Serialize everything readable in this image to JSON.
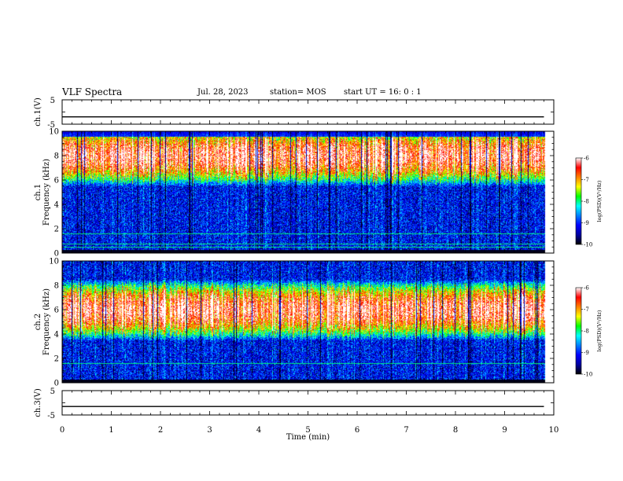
{
  "header": {
    "title": "VLF Spectra",
    "date": "Jul. 28, 2023",
    "station": "station= MOS",
    "start": "start  UT =   16: 0  : 1"
  },
  "chart_data": [
    {
      "type": "line",
      "panel": "ch1-voltage",
      "ylabel": "ch.1(V)",
      "ylim": [
        -5,
        5
      ],
      "y_ticks": [
        "5",
        "-5"
      ],
      "series": [
        {
          "x": [
            0,
            9.8
          ],
          "y": [
            -2.0,
            -2.0
          ]
        }
      ]
    },
    {
      "type": "heatmap",
      "panel": "ch1-spectrogram",
      "ylabel_line1": "ch.1",
      "ylabel_line2": "Frequency (kHz)",
      "ylim": [
        0,
        10
      ],
      "y_ticks": [
        "0",
        "2",
        "4",
        "6",
        "8",
        "10"
      ],
      "colorbar_label": "log(PSD)(V²/Hz)",
      "colorbar_ticks": [
        "-6",
        "-7",
        "-8",
        "-9",
        "-10"
      ],
      "colorbar_range": [
        -10,
        -6
      ],
      "dominant_band_khz": [
        6,
        10
      ],
      "lines_khz": [
        0.5,
        0.8,
        1.6
      ]
    },
    {
      "type": "heatmap",
      "panel": "ch2-spectrogram",
      "ylabel_line1": "ch.2",
      "ylabel_line2": "Frequency (kHz)",
      "ylim": [
        0,
        10
      ],
      "y_ticks": [
        "0",
        "2",
        "4",
        "6",
        "8",
        "10"
      ],
      "colorbar_label": "log(PSD)(V²/Hz)",
      "colorbar_ticks": [
        "-6",
        "-7",
        "-8",
        "-9",
        "-10"
      ],
      "colorbar_range": [
        -10,
        -6
      ],
      "dominant_band_khz": [
        4,
        8
      ],
      "lines_khz": [
        1.6
      ]
    },
    {
      "type": "line",
      "panel": "ch3-voltage",
      "ylabel": "ch.3(V)",
      "ylim": [
        -5,
        5
      ],
      "y_ticks": [
        "5",
        "-5"
      ],
      "series": [
        {
          "x": [
            0,
            9.8
          ],
          "y": [
            -1.5,
            -1.5
          ]
        }
      ]
    }
  ],
  "x_axis": {
    "xlabel": "Time (min)",
    "xlim": [
      0,
      10
    ],
    "ticks": [
      "0",
      "1",
      "2",
      "3",
      "4",
      "5",
      "6",
      "7",
      "8",
      "9",
      "10"
    ]
  },
  "colors": {
    "colormap": [
      "#000000",
      "#0000a0",
      "#0000ff",
      "#0080ff",
      "#00ffff",
      "#00ff00",
      "#ffff00",
      "#ff8000",
      "#ff0000",
      "#ffffff"
    ]
  }
}
